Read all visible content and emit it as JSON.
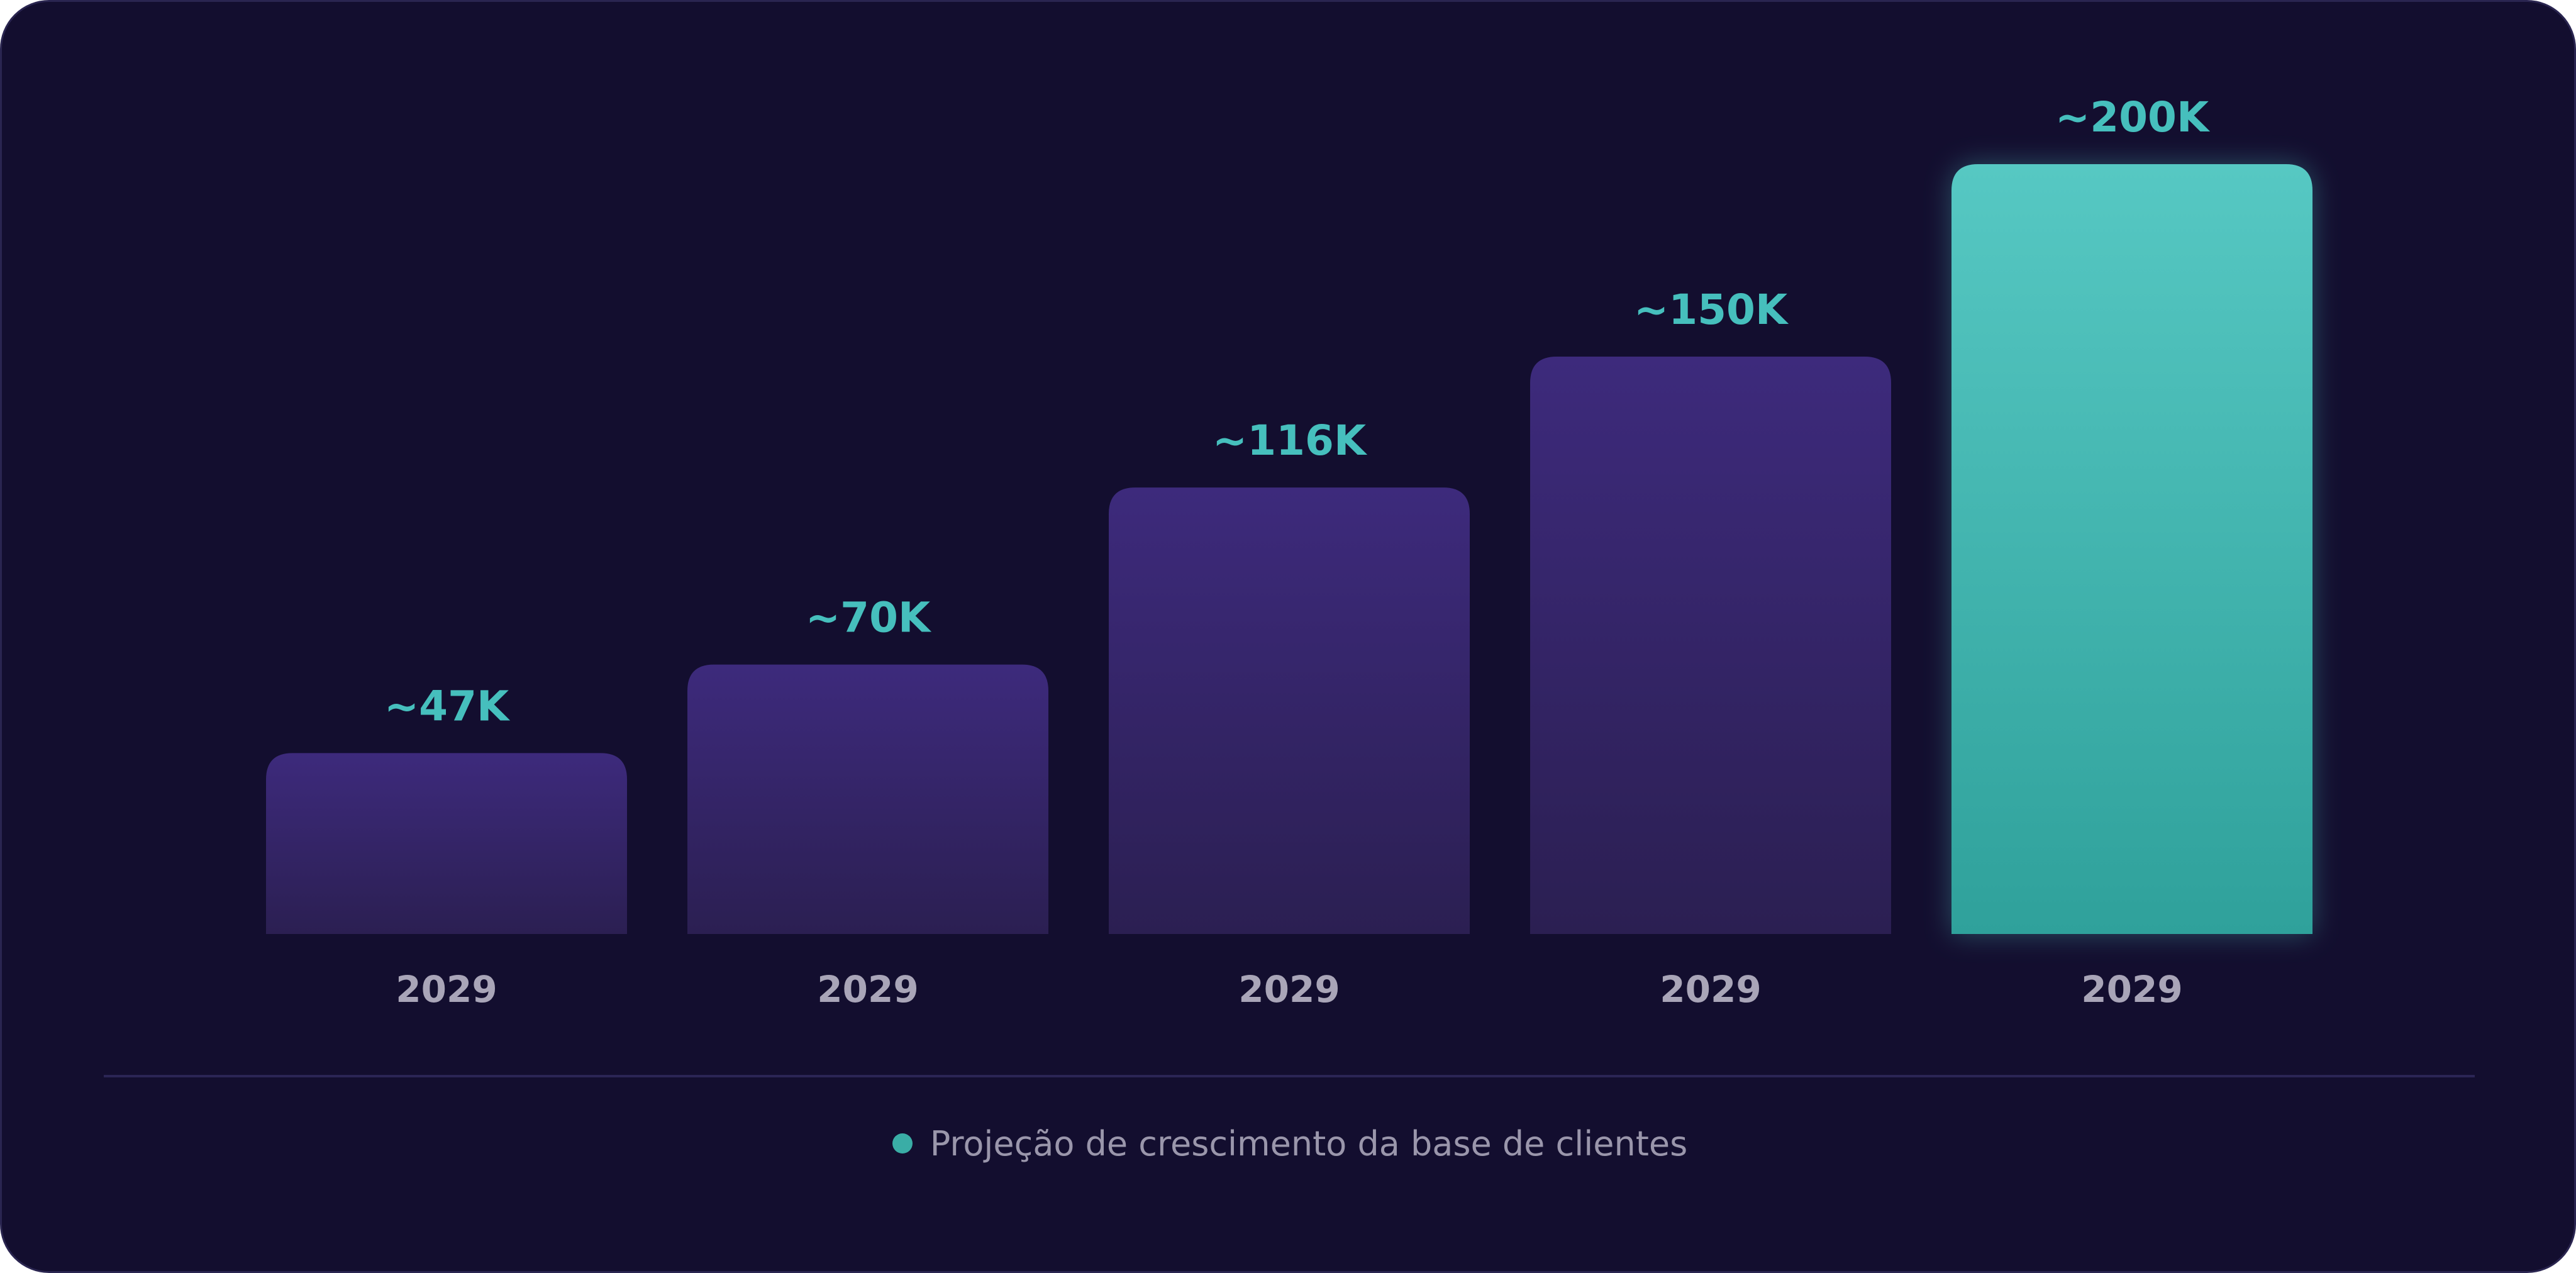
{
  "colors": {
    "background": "#130e2f",
    "bar_top": "#3d2a7c",
    "bar_bottom": "#2b1f52",
    "highlight_top": "#56c8c3",
    "highlight_bottom": "#2fa19b",
    "value_label": "#46bfbd",
    "category_label": "#a9a5b8",
    "legend_dot": "#3aada6"
  },
  "chart_data": {
    "type": "bar",
    "categories": [
      "2029",
      "2029",
      "2029",
      "2029",
      "2029"
    ],
    "values": [
      47000,
      70000,
      116000,
      150000,
      200000
    ],
    "value_labels": [
      "~47K",
      "~70K",
      "~116K",
      "~150K",
      "~200K"
    ],
    "highlight_index": 4,
    "ylim": [
      0,
      200000
    ],
    "grid": false,
    "legend_position": "bottom-center",
    "legend": [
      {
        "label": "Projeção de crescimento da base de clientes",
        "color": "#3aada6"
      }
    ]
  }
}
